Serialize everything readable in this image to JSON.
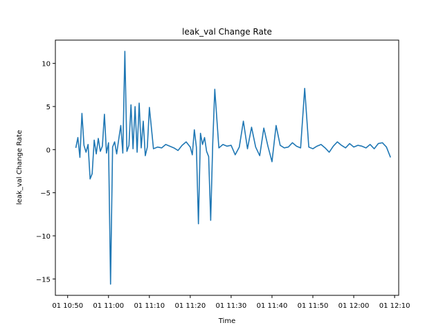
{
  "chart_data": {
    "type": "line",
    "title": "leak_val Change Rate",
    "xlabel": "Time",
    "ylabel": "leak_val Change Rate",
    "x_unit": "minutes (time of day)",
    "xlim": [
      "10:47",
      "12:11"
    ],
    "ylim": [
      -16.9,
      12.7
    ],
    "x_ticks": [
      "01 10:50",
      "01 11:00",
      "01 11:10",
      "01 11:20",
      "01 11:30",
      "01 11:40",
      "01 11:50",
      "01 12:00",
      "01 12:10"
    ],
    "y_ticks": [
      10,
      5,
      0,
      -5,
      -10,
      -15
    ],
    "grid": false,
    "series_color": "#1f77b4",
    "series": [
      {
        "x": [
          "10:52",
          "10:52:30",
          "10:53",
          "10:53:30",
          "10:54",
          "10:54:30",
          "10:55",
          "10:55:30",
          "10:56",
          "10:56:30",
          "10:57",
          "10:57:30",
          "10:58",
          "10:58:30",
          "10:59",
          "10:59:30",
          "11:00",
          "11:00:30",
          "11:01",
          "11:01:30",
          "11:02",
          "11:02:30",
          "11:03",
          "11:03:30",
          "11:04",
          "11:04:30",
          "11:05",
          "11:05:30",
          "11:06",
          "11:06:30",
          "11:07",
          "11:07:30",
          "11:08",
          "11:08:30",
          "11:09",
          "11:09:30",
          "11:10",
          "11:11",
          "11:12",
          "11:13",
          "11:14",
          "11:15",
          "11:16",
          "11:17",
          "11:18",
          "11:19",
          "11:20",
          "11:20:30",
          "11:21",
          "11:21:30",
          "11:22",
          "11:22:30",
          "11:23",
          "11:23:30",
          "11:24",
          "11:24:30",
          "11:25",
          "11:25:30",
          "11:26",
          "11:27",
          "11:28",
          "11:29",
          "11:30",
          "11:31",
          "11:32",
          "11:33",
          "11:34",
          "11:35",
          "11:36",
          "11:37",
          "11:38",
          "11:39",
          "11:40",
          "11:41",
          "11:42",
          "11:43",
          "11:44",
          "11:45",
          "11:46",
          "11:47",
          "11:48",
          "11:49",
          "11:50",
          "11:51",
          "11:52",
          "11:53",
          "11:54",
          "11:55",
          "11:56",
          "11:57",
          "11:58",
          "11:59",
          "12:00",
          "12:01",
          "12:02",
          "12:03",
          "12:04",
          "12:05",
          "12:06",
          "12:07",
          "12:08",
          "12:09"
        ],
        "y": [
          0.2,
          1.4,
          -0.9,
          4.2,
          0.5,
          -0.3,
          0.6,
          -3.4,
          -2.8,
          1.1,
          -0.5,
          1.3,
          -0.2,
          0.4,
          4.1,
          -0.4,
          0.8,
          -15.6,
          0.3,
          0.9,
          -0.5,
          1.2,
          2.8,
          -0.4,
          11.4,
          -0.2,
          0.5,
          5.2,
          0.1,
          5.0,
          -0.3,
          5.4,
          0.2,
          3.3,
          -0.7,
          0.3,
          4.9,
          0.1,
          0.3,
          0.2,
          0.6,
          0.4,
          0.2,
          -0.1,
          0.5,
          0.9,
          0.3,
          -0.6,
          2.3,
          0.3,
          -8.6,
          1.9,
          0.6,
          1.4,
          -0.2,
          -0.8,
          -8.2,
          0.7,
          7.0,
          0.2,
          0.6,
          0.4,
          0.5,
          -0.6,
          0.3,
          3.3,
          0.1,
          2.6,
          0.3,
          -0.7,
          2.5,
          0.4,
          -1.4,
          2.8,
          0.5,
          0.2,
          0.3,
          0.8,
          0.4,
          0.2,
          7.1,
          0.3,
          0.1,
          0.4,
          0.6,
          0.2,
          -0.3,
          0.4,
          0.9,
          0.5,
          0.2,
          0.7,
          0.3,
          0.5,
          0.4,
          0.2,
          0.6,
          0.1,
          0.7,
          0.8,
          0.3,
          -0.9
        ]
      }
    ]
  }
}
